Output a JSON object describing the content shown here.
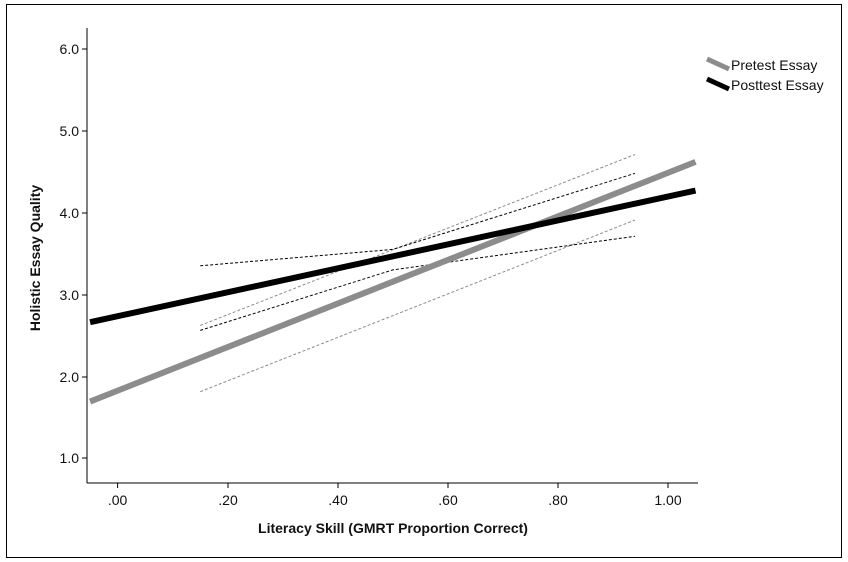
{
  "chart_data": {
    "type": "line",
    "xlabel": "Literacy Skill (GMRT Proportion Correct)",
    "ylabel": "Holistic Essay Quality",
    "xlim": [
      -0.05,
      1.05
    ],
    "ylim": [
      0.8,
      6.3
    ],
    "x_ticks": [
      ".00",
      ".20",
      ".40",
      ".60",
      ".80",
      "1.00"
    ],
    "y_ticks": [
      "1.0",
      "2.0",
      "3.0",
      "4.0",
      "5.0",
      "6.0"
    ],
    "legend_position": "top-right",
    "series": [
      {
        "name": "Pretest Essay",
        "color": "#8c8c8c",
        "line": [
          [
            -0.05,
            1.69
          ],
          [
            1.05,
            4.62
          ]
        ],
        "ci_lower": [
          [
            0.15,
            1.81
          ],
          [
            0.94,
            3.91
          ]
        ],
        "ci_upper": [
          [
            0.15,
            2.62
          ],
          [
            0.94,
            4.71
          ]
        ]
      },
      {
        "name": "Posttest Essay",
        "color": "#000000",
        "line": [
          [
            -0.05,
            2.66
          ],
          [
            1.05,
            4.27
          ]
        ],
        "ci_lower": [
          [
            0.15,
            2.56
          ],
          [
            0.5,
            3.3
          ],
          [
            0.94,
            3.71
          ]
        ],
        "ci_upper": [
          [
            0.15,
            3.35
          ],
          [
            0.5,
            3.55
          ],
          [
            0.94,
            4.48
          ]
        ]
      }
    ]
  }
}
